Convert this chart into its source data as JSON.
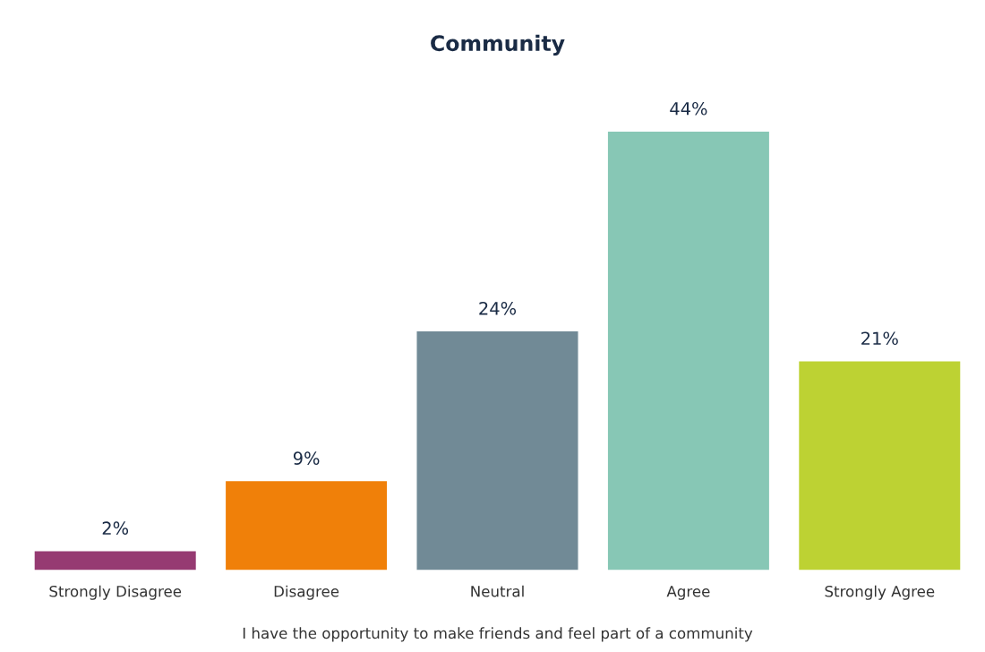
{
  "chart_data": {
    "type": "bar",
    "title": "Community",
    "xlabel": "I have the opportunity to make friends and feel part of a community",
    "categories": [
      "Strongly Disagree",
      "Disagree",
      "Neutral",
      "Agree",
      "Strongly Agree"
    ],
    "values": [
      2,
      9,
      24,
      44,
      21
    ],
    "colors": [
      "#963a72",
      "#f08009",
      "#718a96",
      "#87c7b5",
      "#bdd233"
    ],
    "value_labels": [
      "2%",
      "9%",
      "24%",
      "44%",
      "21%"
    ],
    "grid": false,
    "legend": false
  }
}
